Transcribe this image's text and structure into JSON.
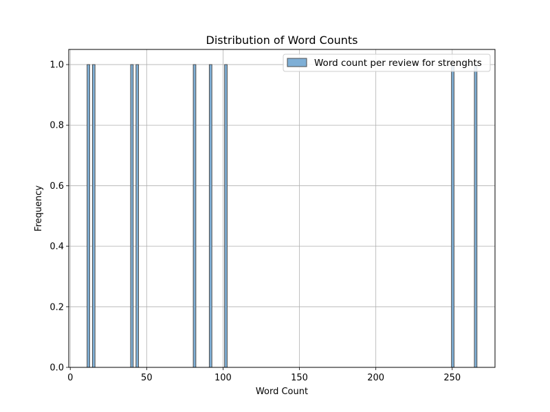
{
  "chart_data": {
    "type": "bar",
    "title": "Distribution of Word Counts",
    "xlabel": "Word Count",
    "ylabel": "Frequency",
    "xlim": [
      -1,
      278
    ],
    "ylim": [
      0,
      1.05
    ],
    "x_ticks": [
      0,
      50,
      100,
      150,
      200,
      250
    ],
    "y_ticks": [
      "0.0",
      "0.2",
      "0.4",
      "0.6",
      "0.8",
      "1.0"
    ],
    "grid": true,
    "legend_position": "top-right",
    "bin_width": 1.69,
    "series": [
      {
        "name": "Word count per review for strenghts",
        "color": "#7fafd6",
        "edge_color": "#4c4c4c",
        "bins": [
          {
            "x": 11,
            "value": 1
          },
          {
            "x": 14.5,
            "value": 1
          },
          {
            "x": 39.5,
            "value": 1
          },
          {
            "x": 43,
            "value": 1
          },
          {
            "x": 80.5,
            "value": 1
          },
          {
            "x": 91,
            "value": 1
          },
          {
            "x": 101,
            "value": 1
          },
          {
            "x": 249.5,
            "value": 1
          },
          {
            "x": 264.5,
            "value": 1
          }
        ]
      }
    ]
  }
}
